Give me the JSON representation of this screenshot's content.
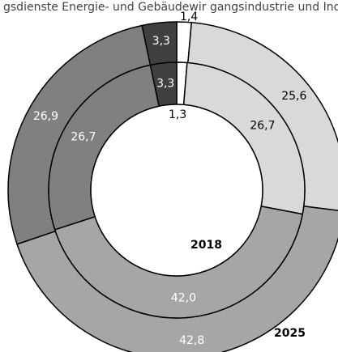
{
  "top_text": "gsdienste Energie- und Gebäudewir gangsindustrie und Industrie Han",
  "chart_data": {
    "type": "donut",
    "rings": [
      {
        "name": "2025",
        "values": [
          1.4,
          25.6,
          42.8,
          26.9,
          3.3
        ],
        "labels": [
          "1,4",
          "25,6",
          "42,8",
          "26,9",
          "3,3"
        ],
        "colors": [
          "#ffffff",
          "#d9d9d9",
          "#a6a6a6",
          "#808080",
          "#404040"
        ]
      },
      {
        "name": "2018",
        "values": [
          1.3,
          26.7,
          42.0,
          26.7,
          3.3
        ],
        "labels": [
          "1,3",
          "26,7",
          "42,0",
          "26,7",
          "3,3"
        ],
        "colors": [
          "#ffffff",
          "#d9d9d9",
          "#a6a6a6",
          "#808080",
          "#404040"
        ]
      }
    ],
    "label_colors": [
      "#000000",
      "#000000",
      "#ffffff",
      "#ffffff",
      "#ffffff"
    ]
  }
}
